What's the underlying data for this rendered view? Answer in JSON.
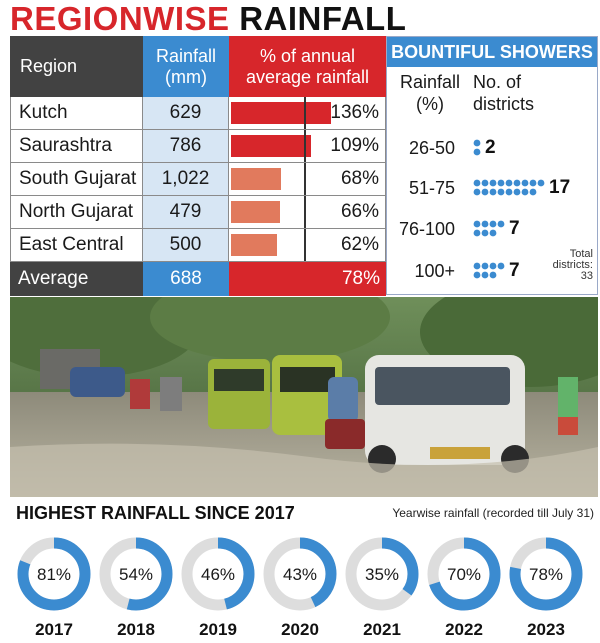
{
  "title": {
    "part1": "REGIONWISE",
    "part2": "RAINFALL"
  },
  "colors": {
    "red": "#d7262b",
    "blue": "#3b8bd0",
    "dark": "#424242",
    "salmon": "#e17a5d",
    "lightblue": "#d7e6f4",
    "ring": "#dddddd"
  },
  "table": {
    "headers": {
      "region": "Region",
      "rainfall": "Rainfall (mm)",
      "pct": "% of annual average rainfall"
    },
    "rows": [
      {
        "region": "Kutch",
        "rainfall": "629",
        "pct_label": "136%",
        "pct": 136
      },
      {
        "region": "Saurashtra",
        "rainfall": "786",
        "pct_label": "109%",
        "pct": 109
      },
      {
        "region": "South Gujarat",
        "rainfall": "1,022",
        "pct_label": "68%",
        "pct": 68
      },
      {
        "region": "North Gujarat",
        "rainfall": "479",
        "pct_label": "66%",
        "pct": 66
      },
      {
        "region": "East Central",
        "rainfall": "500",
        "pct_label": "62%",
        "pct": 62
      }
    ],
    "average": {
      "region": "Average",
      "rainfall": "688",
      "pct_label": "78%"
    }
  },
  "showers": {
    "title": "BOUNTIFUL SHOWERS",
    "col1": "Rainfall (%)",
    "col2": "No. of districts",
    "rows": [
      {
        "range": "26-50",
        "count": 2,
        "count_label": "2"
      },
      {
        "range": "51-75",
        "count": 17,
        "count_label": "17"
      },
      {
        "range": "76-100",
        "count": 7,
        "count_label": "7"
      },
      {
        "range": "100+",
        "count": 7,
        "count_label": "7"
      }
    ],
    "total_line1": "Total",
    "total_line2": "districts:",
    "total_line3": "33"
  },
  "highest": {
    "title": "HIGHEST RAINFALL SINCE 2017",
    "subtitle": "Yearwise rainfall (recorded till July 31)"
  },
  "chart_data": {
    "type": "pie",
    "categories": [
      "2017",
      "2018",
      "2019",
      "2020",
      "2021",
      "2022",
      "2023"
    ],
    "values": [
      81,
      54,
      46,
      43,
      35,
      70,
      78
    ],
    "labels": [
      "81%",
      "54%",
      "46%",
      "43%",
      "35%",
      "70%",
      "78%"
    ]
  }
}
